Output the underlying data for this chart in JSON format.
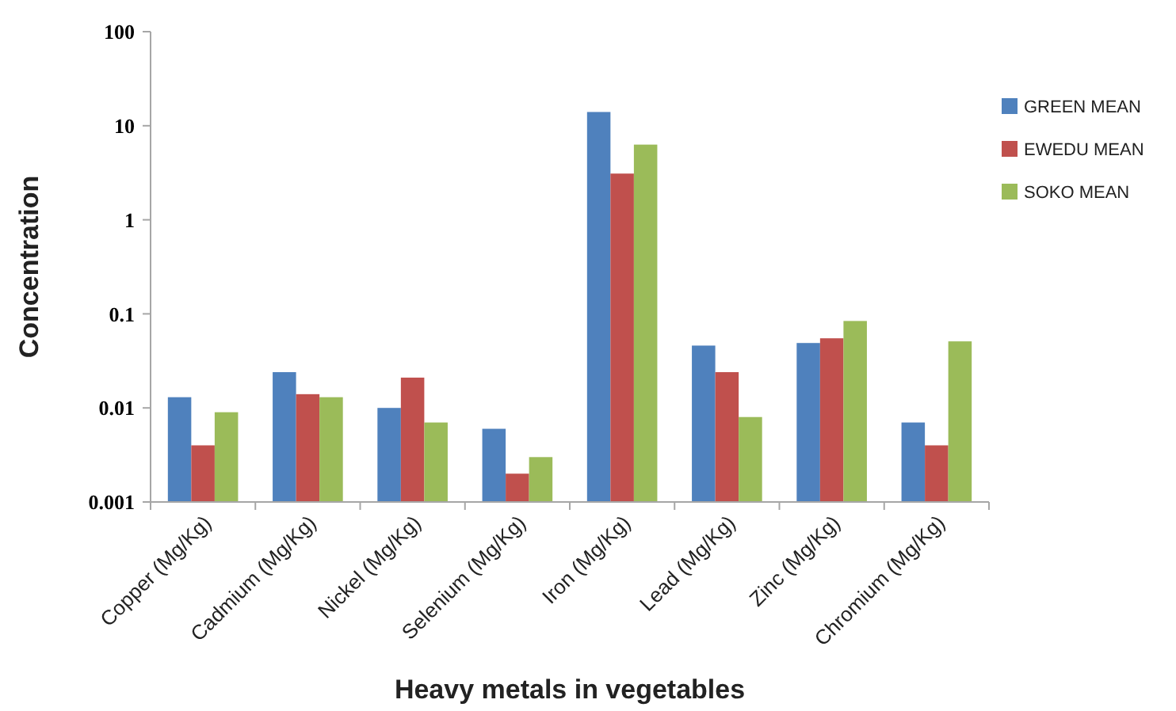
{
  "chart_data": {
    "type": "bar",
    "xlabel": "Heavy metals in vegetables",
    "ylabel": "Concentration",
    "categories": [
      "Copper (Mg/Kg)",
      "Cadmium (Mg/Kg)",
      "Nickel (Mg/Kg)",
      "Selenium (Mg/Kg)",
      "Iron  (Mg/Kg)",
      "Lead (Mg/Kg)",
      "Zinc (Mg/Kg)",
      "Chromium (Mg/Kg)"
    ],
    "series": [
      {
        "name": "GREEN MEAN",
        "color": "#4f81bd",
        "values": [
          0.013,
          0.024,
          0.01,
          0.006,
          14,
          0.046,
          0.049,
          0.007
        ]
      },
      {
        "name": "EWEDU MEAN",
        "color": "#c0504d",
        "values": [
          0.004,
          0.014,
          0.021,
          0.002,
          3.1,
          0.024,
          0.055,
          0.004
        ]
      },
      {
        "name": "SOKO MEAN",
        "color": "#9bbb59",
        "values": [
          0.009,
          0.013,
          0.007,
          0.003,
          6.3,
          0.008,
          0.084,
          0.051
        ]
      }
    ],
    "log": true,
    "ylim": [
      0.001,
      100
    ],
    "yticks": [
      0.001,
      0.01,
      0.1,
      1,
      10,
      100
    ],
    "grid": false,
    "legend": "right"
  }
}
